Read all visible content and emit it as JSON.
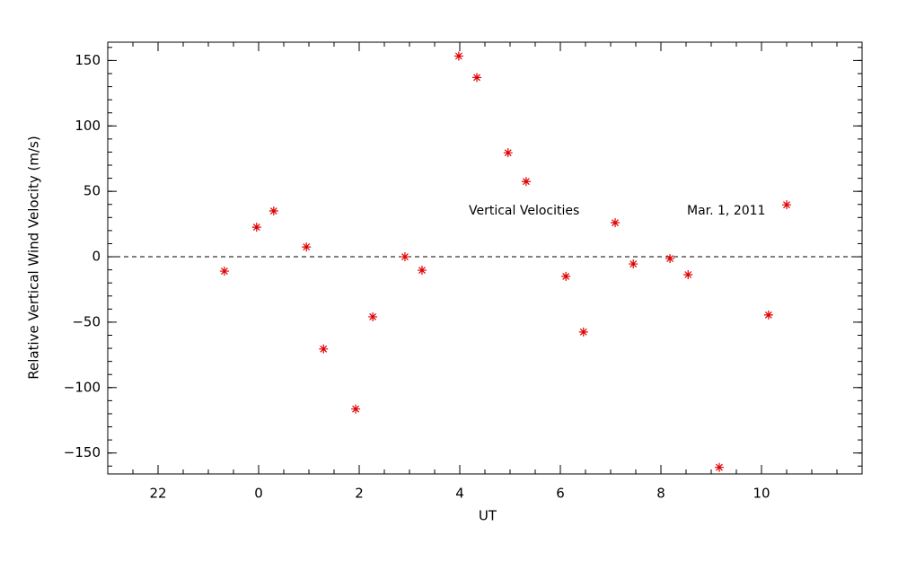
{
  "chart_data": {
    "type": "scatter",
    "x_label": "UT",
    "y_label": "Relative Vertical Wind Velocity (m/s)",
    "annotations": [
      "Vertical Velocities",
      "Mar. 1, 2011"
    ],
    "xlim": [
      -3,
      12
    ],
    "ylim": [
      -166,
      164
    ],
    "xticks": [
      {
        "value": -2,
        "label": "22"
      },
      0,
      2,
      4,
      6,
      8,
      10
    ],
    "yticks": [
      {
        "value": -150,
        "label": "−150"
      },
      {
        "value": -100,
        "label": "−100"
      },
      {
        "value": -50,
        "label": "−50"
      },
      0,
      50,
      100,
      150
    ],
    "reference_line": 0,
    "series": [
      {
        "color": "#e00000",
        "x": [
          -0.68,
          -0.04,
          0.3,
          0.95,
          1.29,
          1.93,
          2.27,
          2.91,
          3.25,
          3.98,
          4.34,
          4.96,
          5.32,
          6.11,
          6.46,
          7.09,
          7.45,
          8.18,
          8.54,
          9.16,
          10.14,
          10.5
        ],
        "values": [
          -11,
          22.6,
          35,
          7.5,
          -70.5,
          -116.4,
          -45.9,
          0,
          -10.3,
          153.4,
          137,
          79.5,
          57.5,
          -15,
          -57.5,
          26,
          -5.5,
          -1.4,
          -13.7,
          -161,
          -44.5,
          39.7
        ]
      }
    ]
  }
}
